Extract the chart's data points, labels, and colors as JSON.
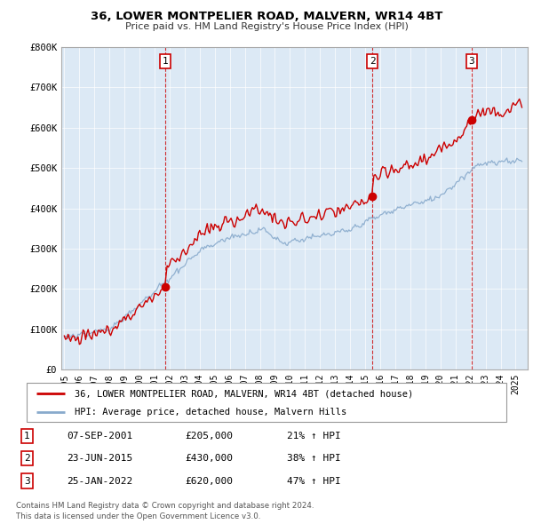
{
  "title": "36, LOWER MONTPELIER ROAD, MALVERN, WR14 4BT",
  "subtitle": "Price paid vs. HM Land Registry's House Price Index (HPI)",
  "property_color": "#cc0000",
  "hpi_color": "#88aacc",
  "chart_bg": "#dce9f5",
  "ylim": [
    0,
    800000
  ],
  "yticks": [
    0,
    100000,
    200000,
    300000,
    400000,
    500000,
    600000,
    700000,
    800000
  ],
  "ytick_labels": [
    "£0",
    "£100K",
    "£200K",
    "£300K",
    "£400K",
    "£500K",
    "£600K",
    "£700K",
    "£800K"
  ],
  "xlim_start": 1994.8,
  "xlim_end": 2025.8,
  "sales": [
    {
      "num": 1,
      "date": "07-SEP-2001",
      "price": 205000,
      "pct": "21%",
      "year": 2001.69
    },
    {
      "num": 2,
      "date": "23-JUN-2015",
      "price": 430000,
      "pct": "38%",
      "year": 2015.47
    },
    {
      "num": 3,
      "date": "25-JAN-2022",
      "price": 620000,
      "pct": "47%",
      "year": 2022.07
    }
  ],
  "legend_property": "36, LOWER MONTPELIER ROAD, MALVERN, WR14 4BT (detached house)",
  "legend_hpi": "HPI: Average price, detached house, Malvern Hills",
  "footer1": "Contains HM Land Registry data © Crown copyright and database right 2024.",
  "footer2": "This data is licensed under the Open Government Licence v3.0."
}
